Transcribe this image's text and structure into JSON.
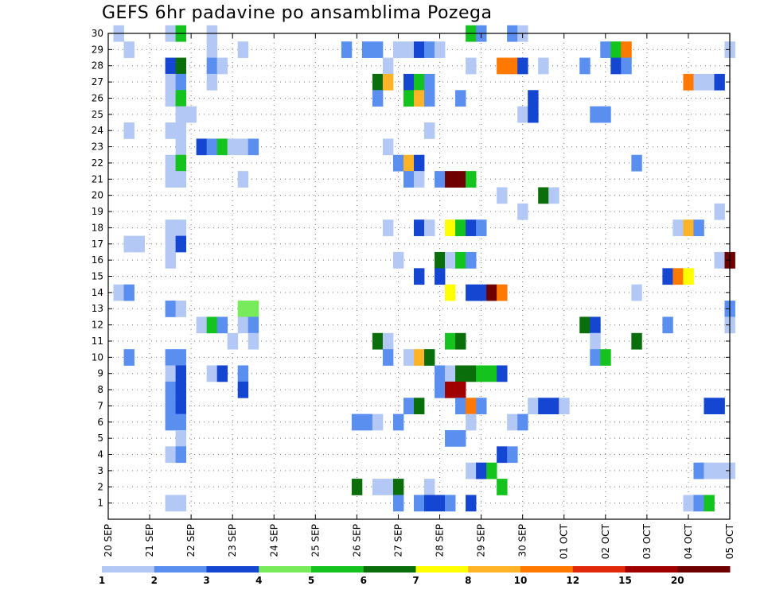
{
  "chart_data": {
    "type": "heatmap",
    "title": "GEFS 6hr padavine po ansamblima Pozega",
    "x_tick_labels": [
      "20 SEP",
      "21 SEP",
      "22 SEP",
      "23 SEP",
      "24 SEP",
      "25 SEP",
      "26 SEP",
      "27 SEP",
      "28 SEP",
      "29 SEP",
      "30 SEP",
      "01 OCT",
      "02 OCT",
      "03 OCT",
      "04 OCT",
      "05 OCT"
    ],
    "y_tick_labels": [
      "1",
      "2",
      "3",
      "4",
      "5",
      "6",
      "7",
      "8",
      "9",
      "10",
      "11",
      "12",
      "13",
      "14",
      "15",
      "16",
      "17",
      "18",
      "19",
      "20",
      "21",
      "22",
      "23",
      "24",
      "25",
      "26",
      "27",
      "28",
      "29",
      "30"
    ],
    "x_range": [
      0,
      15
    ],
    "y_range": [
      0,
      30
    ],
    "grid": true,
    "colorbar": {
      "labels": [
        "1",
        "2",
        "3",
        "4",
        "5",
        "6",
        "7",
        "8",
        "10",
        "12",
        "15",
        "20"
      ],
      "colors": [
        "#b4c8f5",
        "#5a8ff0",
        "#1446d2",
        "#78eb5a",
        "#14c31e",
        "#0a6e0a",
        "#ffff00",
        "#ffb428",
        "#ff7800",
        "#e1280a",
        "#a00000",
        "#6e0000"
      ]
    },
    "cells": [
      [
        0.25,
        30,
        0
      ],
      [
        0.5,
        29,
        0
      ],
      [
        1.5,
        30,
        0
      ],
      [
        1.75,
        30,
        4
      ],
      [
        2.5,
        30,
        0
      ],
      [
        2.5,
        29,
        0
      ],
      [
        3.25,
        29,
        0
      ],
      [
        5.75,
        29,
        1
      ],
      [
        6.25,
        29,
        1
      ],
      [
        6.5,
        29,
        1
      ],
      [
        7.0,
        29,
        0
      ],
      [
        7.25,
        29,
        0
      ],
      [
        7.5,
        29,
        2
      ],
      [
        7.75,
        29,
        1
      ],
      [
        8.0,
        29,
        0
      ],
      [
        8.75,
        30,
        4
      ],
      [
        9.0,
        30,
        1
      ],
      [
        9.75,
        30,
        1
      ],
      [
        10.0,
        30,
        0
      ],
      [
        12.0,
        29,
        1
      ],
      [
        12.25,
        29,
        4
      ],
      [
        12.5,
        29,
        8
      ],
      [
        15.0,
        29,
        0
      ],
      [
        1.5,
        28,
        2
      ],
      [
        1.75,
        28,
        5
      ],
      [
        2.5,
        28,
        1
      ],
      [
        2.75,
        28,
        0
      ],
      [
        6.75,
        28,
        0
      ],
      [
        8.75,
        28,
        0
      ],
      [
        9.5,
        28,
        8
      ],
      [
        9.75,
        28,
        8
      ],
      [
        10.0,
        28,
        2
      ],
      [
        10.5,
        28,
        0
      ],
      [
        11.5,
        28,
        1
      ],
      [
        12.25,
        28,
        2
      ],
      [
        12.5,
        28,
        1
      ],
      [
        1.5,
        27,
        0
      ],
      [
        1.75,
        27,
        1
      ],
      [
        2.5,
        27,
        0
      ],
      [
        6.5,
        27,
        5
      ],
      [
        6.75,
        27,
        7
      ],
      [
        7.25,
        27,
        2
      ],
      [
        7.5,
        27,
        4
      ],
      [
        7.75,
        27,
        1
      ],
      [
        14.0,
        27,
        8
      ],
      [
        14.25,
        27,
        0
      ],
      [
        14.5,
        27,
        0
      ],
      [
        14.75,
        27,
        2
      ],
      [
        1.5,
        26,
        0
      ],
      [
        1.75,
        26,
        4
      ],
      [
        6.5,
        26,
        1
      ],
      [
        7.25,
        26,
        4
      ],
      [
        7.5,
        26,
        7
      ],
      [
        7.75,
        26,
        1
      ],
      [
        8.5,
        26,
        1
      ],
      [
        10.25,
        26,
        2
      ],
      [
        1.75,
        25,
        0
      ],
      [
        2.0,
        25,
        0
      ],
      [
        10.0,
        25,
        0
      ],
      [
        10.25,
        25,
        2
      ],
      [
        11.75,
        25,
        1
      ],
      [
        12.0,
        25,
        1
      ],
      [
        0.5,
        24,
        0
      ],
      [
        1.5,
        24,
        0
      ],
      [
        1.75,
        24,
        0
      ],
      [
        7.75,
        24,
        0
      ],
      [
        1.75,
        23,
        0
      ],
      [
        2.25,
        23,
        2
      ],
      [
        2.5,
        23,
        1
      ],
      [
        2.75,
        23,
        4
      ],
      [
        3.0,
        23,
        0
      ],
      [
        3.25,
        23,
        0
      ],
      [
        3.5,
        23,
        1
      ],
      [
        6.75,
        23,
        0
      ],
      [
        1.5,
        22,
        0
      ],
      [
        1.75,
        22,
        4
      ],
      [
        7.0,
        22,
        1
      ],
      [
        7.25,
        22,
        7
      ],
      [
        7.5,
        22,
        2
      ],
      [
        12.75,
        22,
        1
      ],
      [
        1.5,
        21,
        0
      ],
      [
        1.75,
        21,
        0
      ],
      [
        3.25,
        21,
        0
      ],
      [
        7.25,
        21,
        1
      ],
      [
        7.5,
        21,
        0
      ],
      [
        8.0,
        21,
        1
      ],
      [
        8.25,
        21,
        11
      ],
      [
        8.5,
        21,
        11
      ],
      [
        8.75,
        21,
        4
      ],
      [
        9.5,
        20,
        0
      ],
      [
        10.5,
        20,
        5
      ],
      [
        10.75,
        20,
        0
      ],
      [
        10.0,
        19,
        0
      ],
      [
        14.75,
        19,
        0
      ],
      [
        1.5,
        18,
        0
      ],
      [
        1.75,
        18,
        0
      ],
      [
        6.75,
        18,
        0
      ],
      [
        7.5,
        18,
        2
      ],
      [
        7.75,
        18,
        0
      ],
      [
        8.25,
        18,
        6
      ],
      [
        8.5,
        18,
        4
      ],
      [
        8.75,
        18,
        2
      ],
      [
        9.0,
        18,
        1
      ],
      [
        13.75,
        18,
        0
      ],
      [
        14.0,
        18,
        7
      ],
      [
        14.25,
        18,
        1
      ],
      [
        0.5,
        17,
        0
      ],
      [
        0.75,
        17,
        0
      ],
      [
        1.5,
        17,
        0
      ],
      [
        1.75,
        17,
        2
      ],
      [
        1.5,
        16,
        0
      ],
      [
        7.0,
        16,
        0
      ],
      [
        8.0,
        16,
        5
      ],
      [
        8.25,
        16,
        0
      ],
      [
        8.5,
        16,
        4
      ],
      [
        8.75,
        16,
        1
      ],
      [
        14.75,
        16,
        0
      ],
      [
        15.0,
        16,
        11
      ],
      [
        7.5,
        15,
        2
      ],
      [
        8.0,
        15,
        2
      ],
      [
        13.5,
        15,
        2
      ],
      [
        13.75,
        15,
        8
      ],
      [
        14.0,
        15,
        6
      ],
      [
        0.25,
        14,
        0
      ],
      [
        0.5,
        14,
        1
      ],
      [
        8.25,
        14,
        6
      ],
      [
        8.75,
        14,
        2
      ],
      [
        9.0,
        14,
        2
      ],
      [
        9.25,
        14,
        11
      ],
      [
        9.5,
        14,
        8
      ],
      [
        12.75,
        14,
        0
      ],
      [
        1.5,
        13,
        1
      ],
      [
        1.75,
        13,
        0
      ],
      [
        3.25,
        13,
        3
      ],
      [
        3.5,
        13,
        3
      ],
      [
        15.0,
        13,
        1
      ],
      [
        2.25,
        12,
        0
      ],
      [
        2.5,
        12,
        4
      ],
      [
        2.75,
        12,
        1
      ],
      [
        3.25,
        12,
        0
      ],
      [
        3.5,
        12,
        1
      ],
      [
        11.5,
        12,
        5
      ],
      [
        11.75,
        12,
        2
      ],
      [
        13.5,
        12,
        1
      ],
      [
        15.0,
        12,
        0
      ],
      [
        3.0,
        11,
        0
      ],
      [
        3.5,
        11,
        0
      ],
      [
        6.5,
        11,
        5
      ],
      [
        6.75,
        11,
        0
      ],
      [
        8.25,
        11,
        4
      ],
      [
        8.5,
        11,
        5
      ],
      [
        11.75,
        11,
        0
      ],
      [
        12.75,
        11,
        5
      ],
      [
        0.5,
        10,
        1
      ],
      [
        1.5,
        10,
        1
      ],
      [
        1.75,
        10,
        1
      ],
      [
        6.75,
        10,
        1
      ],
      [
        7.25,
        10,
        0
      ],
      [
        7.5,
        10,
        7
      ],
      [
        7.75,
        10,
        5
      ],
      [
        11.75,
        10,
        1
      ],
      [
        12.0,
        10,
        4
      ],
      [
        1.5,
        9,
        0
      ],
      [
        1.75,
        9,
        2
      ],
      [
        2.5,
        9,
        0
      ],
      [
        2.75,
        9,
        2
      ],
      [
        3.25,
        9,
        1
      ],
      [
        8.0,
        9,
        1
      ],
      [
        8.25,
        9,
        0
      ],
      [
        8.5,
        9,
        5
      ],
      [
        8.75,
        9,
        5
      ],
      [
        9.0,
        9,
        4
      ],
      [
        9.25,
        9,
        4
      ],
      [
        9.5,
        9,
        2
      ],
      [
        1.5,
        8,
        1
      ],
      [
        1.75,
        8,
        2
      ],
      [
        3.25,
        8,
        2
      ],
      [
        8.0,
        8,
        1
      ],
      [
        8.25,
        8,
        10
      ],
      [
        8.5,
        8,
        10
      ],
      [
        1.5,
        7,
        1
      ],
      [
        1.75,
        7,
        2
      ],
      [
        7.25,
        7,
        1
      ],
      [
        7.5,
        7,
        5
      ],
      [
        8.5,
        7,
        1
      ],
      [
        8.75,
        7,
        8
      ],
      [
        9.0,
        7,
        1
      ],
      [
        10.25,
        7,
        0
      ],
      [
        10.5,
        7,
        2
      ],
      [
        10.75,
        7,
        2
      ],
      [
        11.0,
        7,
        0
      ],
      [
        14.5,
        7,
        2
      ],
      [
        14.75,
        7,
        2
      ],
      [
        1.5,
        6,
        1
      ],
      [
        1.75,
        6,
        1
      ],
      [
        6.0,
        6,
        1
      ],
      [
        6.25,
        6,
        1
      ],
      [
        6.5,
        6,
        0
      ],
      [
        7.0,
        6,
        1
      ],
      [
        8.75,
        6,
        0
      ],
      [
        9.75,
        6,
        0
      ],
      [
        10.0,
        6,
        1
      ],
      [
        8.25,
        5,
        1
      ],
      [
        8.5,
        5,
        1
      ],
      [
        1.75,
        5,
        0
      ],
      [
        1.5,
        4,
        0
      ],
      [
        1.75,
        4,
        1
      ],
      [
        9.5,
        4,
        2
      ],
      [
        9.75,
        4,
        1
      ],
      [
        8.75,
        3,
        0
      ],
      [
        9.0,
        3,
        2
      ],
      [
        9.25,
        3,
        4
      ],
      [
        14.25,
        3,
        1
      ],
      [
        14.5,
        3,
        0
      ],
      [
        14.75,
        3,
        0
      ],
      [
        15.0,
        3,
        0
      ],
      [
        6.0,
        2,
        5
      ],
      [
        6.5,
        2,
        0
      ],
      [
        6.75,
        2,
        0
      ],
      [
        7.0,
        2,
        5
      ],
      [
        7.75,
        2,
        0
      ],
      [
        9.5,
        2,
        4
      ],
      [
        1.5,
        1,
        0
      ],
      [
        1.75,
        1,
        0
      ],
      [
        7.0,
        1,
        1
      ],
      [
        7.5,
        1,
        1
      ],
      [
        7.75,
        1,
        2
      ],
      [
        8.0,
        1,
        2
      ],
      [
        8.25,
        1,
        1
      ],
      [
        8.75,
        1,
        2
      ],
      [
        14.0,
        1,
        0
      ],
      [
        14.25,
        1,
        1
      ],
      [
        14.5,
        1,
        4
      ]
    ]
  }
}
